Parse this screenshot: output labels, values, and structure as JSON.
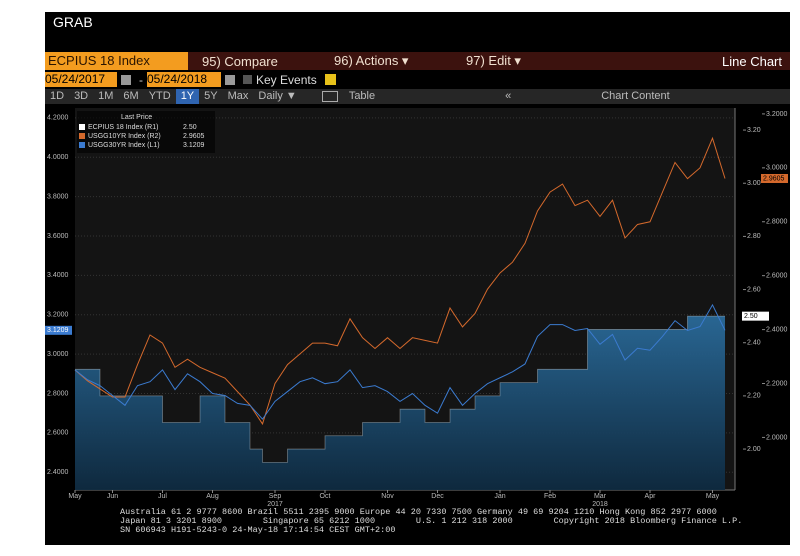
{
  "header": {
    "title": "GRAB",
    "security": "ECPIUS 18 Index",
    "menu": [
      "95) Compare",
      "96) Actions ▾",
      "97) Edit ▾"
    ],
    "view": "Line Chart",
    "start_date": "05/24/2017",
    "date_sep": "-",
    "end_date": "05/24/2018",
    "key_events": "Key Events",
    "periods": [
      "1D",
      "3D",
      "1M",
      "6M",
      "YTD",
      "1Y",
      "5Y",
      "Max"
    ],
    "active_period": "1Y",
    "frequency": "Daily ▼",
    "table": "Table",
    "collapse": "«",
    "chart_content": "Chart Content"
  },
  "chart_data": {
    "type": "line",
    "legend_title": "Last Price",
    "categories": [
      "May",
      null,
      null,
      "Jun",
      null,
      null,
      null,
      "Jul",
      null,
      null,
      null,
      "Aug",
      null,
      null,
      null,
      null,
      "Sep",
      null,
      null,
      null,
      "Oct",
      null,
      null,
      null,
      null,
      "Nov",
      null,
      null,
      null,
      "Dec",
      null,
      null,
      null,
      null,
      "Jan",
      null,
      null,
      null,
      "Feb",
      null,
      null,
      null,
      "Mar",
      null,
      null,
      null,
      "Apr",
      null,
      null,
      null,
      null,
      "May",
      null
    ],
    "year_labels": [
      {
        "label": "2017",
        "at": 16
      },
      {
        "label": "2018",
        "at": 42
      }
    ],
    "series": [
      {
        "name": "ECPIUS 18 Index (R1)",
        "last_label": "2.50",
        "color": "#ffffff",
        "fill_color": "#2a6a99",
        "style": "step-area",
        "axis": "y2",
        "values": [
          2.3,
          2.3,
          2.2,
          2.2,
          2.2,
          2.2,
          2.2,
          2.1,
          2.1,
          2.1,
          2.2,
          2.2,
          2.1,
          2.1,
          2.0,
          1.95,
          1.95,
          2.0,
          2.0,
          2.0,
          2.05,
          2.05,
          2.05,
          2.1,
          2.1,
          2.1,
          2.15,
          2.15,
          2.1,
          2.1,
          2.15,
          2.15,
          2.2,
          2.2,
          2.25,
          2.25,
          2.25,
          2.3,
          2.3,
          2.3,
          2.3,
          2.45,
          2.45,
          2.45,
          2.45,
          2.45,
          2.45,
          2.45,
          2.45,
          2.5,
          2.5,
          2.5,
          2.5
        ]
      },
      {
        "name": "USGG10YR Index (R2)",
        "last_label": "2.9605",
        "color": "#d4692c",
        "style": "line",
        "axis": "y3",
        "values": [
          2.25,
          2.21,
          2.18,
          2.15,
          2.15,
          2.27,
          2.38,
          2.35,
          2.26,
          2.29,
          2.26,
          2.24,
          2.22,
          2.17,
          2.12,
          2.05,
          2.2,
          2.27,
          2.31,
          2.35,
          2.35,
          2.34,
          2.44,
          2.37,
          2.33,
          2.37,
          2.33,
          2.37,
          2.36,
          2.35,
          2.48,
          2.41,
          2.46,
          2.55,
          2.61,
          2.65,
          2.72,
          2.84,
          2.91,
          2.94,
          2.86,
          2.88,
          2.82,
          2.88,
          2.74,
          2.79,
          2.8,
          2.91,
          3.02,
          2.96,
          3.0,
          3.11,
          2.9605
        ]
      },
      {
        "name": "USGG30YR Index (L1)",
        "last_label": "3.1209",
        "color": "#3b7bd0",
        "style": "line",
        "axis": "y",
        "values": [
          2.92,
          2.87,
          2.84,
          2.79,
          2.74,
          2.84,
          2.86,
          2.92,
          2.82,
          2.9,
          2.86,
          2.8,
          2.79,
          2.75,
          2.74,
          2.67,
          2.76,
          2.81,
          2.86,
          2.88,
          2.85,
          2.86,
          2.92,
          2.83,
          2.84,
          2.81,
          2.76,
          2.8,
          2.74,
          2.7,
          2.83,
          2.74,
          2.8,
          2.85,
          2.88,
          2.91,
          2.95,
          3.09,
          3.15,
          3.15,
          3.12,
          3.13,
          3.05,
          3.1,
          2.97,
          3.03,
          3.02,
          3.09,
          3.17,
          3.12,
          3.14,
          3.25,
          3.1209
        ]
      }
    ],
    "ylim": [
      2.31,
      4.25
    ],
    "yticks": [
      {
        "value": 2.4,
        "label": "2.4000"
      },
      {
        "value": 2.6,
        "label": "2.6000"
      },
      {
        "value": 2.8,
        "label": "2.8000"
      },
      {
        "value": 3.0,
        "label": "3.0000"
      },
      {
        "value": 3.2,
        "label": "3.2000"
      },
      {
        "value": 3.4,
        "label": "3.4000"
      },
      {
        "value": 3.6,
        "label": "3.6000"
      },
      {
        "value": 3.8,
        "label": "3.8000"
      },
      {
        "value": 4.0,
        "label": "4.0000"
      },
      {
        "value": 4.2,
        "label": "4.2000"
      }
    ],
    "y2lim": [
      1.846,
      3.283
    ],
    "y2ticks": [
      {
        "value": 2.0,
        "label": "2.00"
      },
      {
        "value": 2.2,
        "label": "2.20"
      },
      {
        "value": 2.4,
        "label": "2.40"
      },
      {
        "value": 2.6,
        "label": "2.60"
      },
      {
        "value": 2.8,
        "label": "2.80"
      },
      {
        "value": 3.0,
        "label": "3.00"
      },
      {
        "value": 3.2,
        "label": "3.20"
      }
    ],
    "y3lim": [
      1.805,
      3.222
    ],
    "y3ticks": [
      {
        "value": 2.0,
        "label": "2.0000"
      },
      {
        "value": 2.2,
        "label": "2.2000"
      },
      {
        "value": 2.4,
        "label": "2.4000"
      },
      {
        "value": 2.6,
        "label": "2.6000"
      },
      {
        "value": 2.8,
        "label": "2.8000"
      },
      {
        "value": 3.0,
        "label": "3.0000"
      },
      {
        "value": 3.2,
        "label": "3.2000"
      }
    ],
    "grid": true
  },
  "footer": [
    "Australia 61 2 9777 8600 Brazil 5511 2395 9000 Europe 44 20 7330 7500 Germany 49 69 9204 1210 Hong Kong 852 2977 6000",
    "Japan 81 3 3201 8900        Singapore 65 6212 1000        U.S. 1 212 318 2000        Copyright 2018 Bloomberg Finance L.P.",
    "SN 606943 H191-5243-0 24-May-18 17:14:54 CEST GMT+2:00"
  ]
}
